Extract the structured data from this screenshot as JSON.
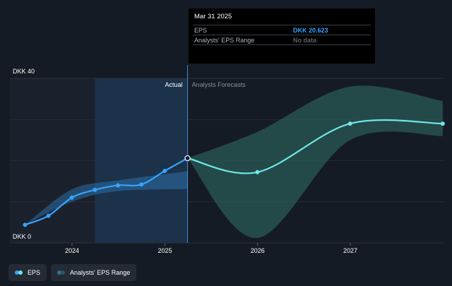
{
  "chart_data": {
    "type": "line",
    "currency": "DKK",
    "x_ticks": [
      "2024",
      "2025",
      "2026",
      "2027"
    ],
    "y_ticks": [
      {
        "value": 40,
        "label": "DKK 40"
      },
      {
        "value": 0,
        "label": "DKK 0"
      }
    ],
    "ylim": [
      0,
      40
    ],
    "section_labels": {
      "actual": "Actual",
      "forecast": "Analysts Forecasts"
    },
    "series": [
      {
        "name": "EPS",
        "color": "#38a3ff",
        "kind": "actual",
        "points": [
          {
            "date": "2023-06-30",
            "value": 4.4
          },
          {
            "date": "2023-09-30",
            "value": 6.6
          },
          {
            "date": "2023-12-31",
            "value": 11.0
          },
          {
            "date": "2024-03-31",
            "value": 12.9
          },
          {
            "date": "2024-06-30",
            "value": 14.0
          },
          {
            "date": "2024-09-30",
            "value": 14.2
          },
          {
            "date": "2024-12-31",
            "value": 17.5
          },
          {
            "date": "2025-03-31",
            "value": 20.6
          }
        ]
      },
      {
        "name": "EPS",
        "color": "#6fe6e6",
        "kind": "forecast",
        "points": [
          {
            "date": "2025-03-31",
            "value": 20.6
          },
          {
            "date": "2025-12-31",
            "value": 17.2
          },
          {
            "date": "2026-12-31",
            "value": 29.0
          },
          {
            "date": "2027-12-31",
            "value": 29.0
          }
        ]
      }
    ],
    "ranges": [
      {
        "name": "Analysts' EPS Range",
        "kind": "actual",
        "color": "#2c6fa8",
        "upper": [
          {
            "date": "2023-06-30",
            "value": 4.4
          },
          {
            "date": "2023-12-31",
            "value": 13.0
          },
          {
            "date": "2024-06-30",
            "value": 15.2
          },
          {
            "date": "2025-03-31",
            "value": 17.4
          }
        ],
        "lower": [
          {
            "date": "2023-06-30",
            "value": 4.4
          },
          {
            "date": "2023-12-31",
            "value": 10.0
          },
          {
            "date": "2024-06-30",
            "value": 12.6
          },
          {
            "date": "2025-03-31",
            "value": 13.1
          }
        ]
      },
      {
        "name": "Analysts' EPS Range",
        "kind": "forecast",
        "color": "#2a5a55",
        "upper": [
          {
            "date": "2025-03-31",
            "value": 20.6
          },
          {
            "date": "2025-12-31",
            "value": 27.0
          },
          {
            "date": "2026-12-31",
            "value": 38.0
          },
          {
            "date": "2027-12-31",
            "value": 34.5
          }
        ],
        "lower": [
          {
            "date": "2025-03-31",
            "value": 20.6
          },
          {
            "date": "2025-12-31",
            "value": 1.2
          },
          {
            "date": "2026-12-31",
            "value": 25.0
          },
          {
            "date": "2027-12-31",
            "value": 26.0
          }
        ]
      }
    ],
    "highlight_start": "2024-03-31",
    "selected_date": "2025-03-31",
    "grid": true
  },
  "tooltip": {
    "date": "Mar 31 2025",
    "rows": [
      {
        "label": "EPS",
        "value": "DKK 20.623"
      },
      {
        "label": "Analysts' EPS Range",
        "value": "No data"
      }
    ]
  },
  "legend": [
    {
      "label": "EPS",
      "colors": [
        "#38a3ff",
        "#6fe6e6"
      ]
    },
    {
      "label": "Analysts' EPS Range",
      "colors": [
        "#2c6fa8",
        "#2a5a55"
      ]
    }
  ]
}
